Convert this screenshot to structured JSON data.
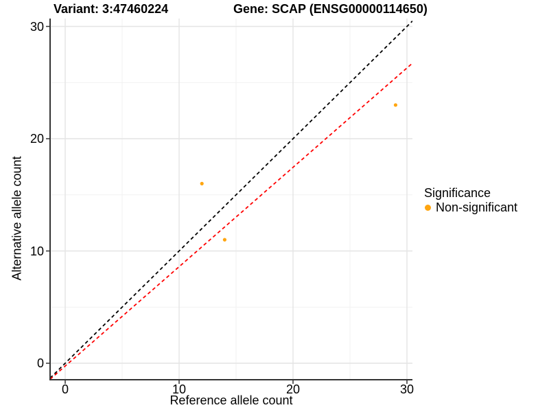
{
  "chart_data": {
    "type": "scatter",
    "title_left": "Variant: 3:47460224",
    "title_right": "Gene: SCAP (ENSG00000114650)",
    "xlabel": "Reference allele count",
    "ylabel": "Alternative allele count",
    "xlim": [
      -1.35,
      30.5
    ],
    "ylim": [
      -1.5,
      30.7
    ],
    "xticks": [
      0,
      10,
      20,
      30
    ],
    "yticks": [
      0,
      10,
      20,
      30
    ],
    "xtick_labels": [
      "0",
      "10",
      "20",
      "30"
    ],
    "ytick_labels": [
      "0",
      "10",
      "20",
      "30"
    ],
    "minor_xticks": [
      5,
      15,
      25
    ],
    "minor_yticks": [
      5,
      15,
      25
    ],
    "grid": true,
    "legend_position": "right",
    "points": [
      {
        "x": 12,
        "y": 16,
        "series": "Non-significant"
      },
      {
        "x": 14,
        "y": 11,
        "series": "Non-significant"
      },
      {
        "x": 29,
        "y": 23,
        "series": "Non-significant"
      }
    ],
    "point_color": "#FFA510",
    "lines": [
      {
        "name": "identity",
        "slope": 1,
        "intercept": 0,
        "color": "#000000",
        "style": "dashed"
      },
      {
        "name": "fit",
        "slope": 0.885,
        "intercept": -0.25,
        "color": "#FF0000",
        "style": "dashed"
      }
    ],
    "legend": {
      "title": "Significance",
      "items": [
        {
          "label": "Non-significant",
          "color": "#FFA510"
        }
      ]
    },
    "colors": {
      "axis": "#333333",
      "grid_major": "#E4E4E4",
      "grid_minor": "#F1F1F1"
    }
  }
}
